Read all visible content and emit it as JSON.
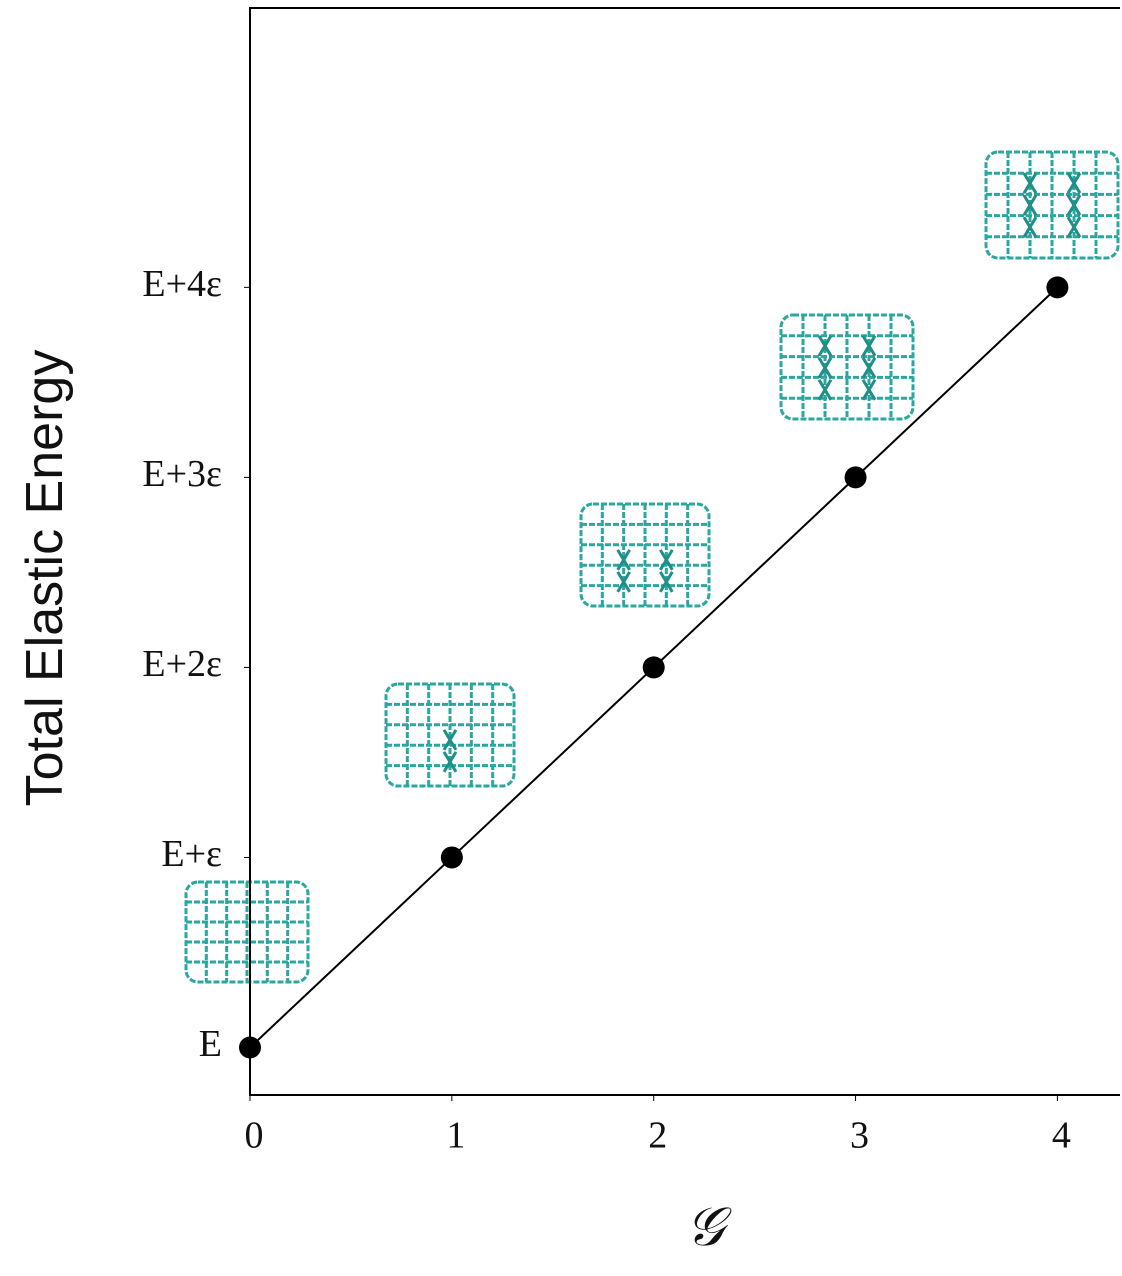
{
  "chart_data": {
    "type": "line",
    "x_label": "𝒢",
    "y_label": "Total Elastic Energy",
    "x": [
      0,
      1,
      2,
      3,
      4
    ],
    "values": [
      0,
      1,
      2,
      3,
      4
    ],
    "color": "#000000",
    "marker_color": "#000000",
    "xlim": [
      0,
      4.32
    ],
    "ylim": [
      -0.25,
      5.47
    ],
    "xticks": [
      0,
      1,
      2,
      3,
      4
    ],
    "yticks": [
      {
        "value": 0,
        "label": "E"
      },
      {
        "value": 1,
        "label": "E+ε"
      },
      {
        "value": 2,
        "label": "E+2ε"
      },
      {
        "value": 3,
        "label": "E+3ε"
      },
      {
        "value": 4,
        "label": "E+4ε"
      }
    ],
    "grid": false
  }
}
